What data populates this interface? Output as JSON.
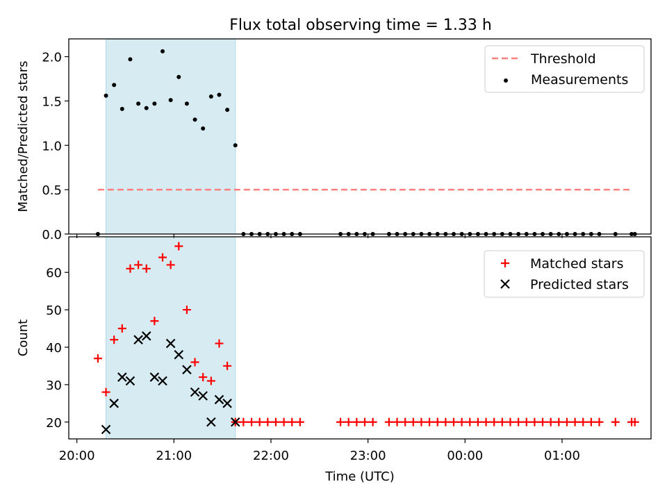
{
  "title": "Flux total observing time = 1.33 h",
  "colors": {
    "threshold": "#ff7f7f",
    "measurement": "#000000",
    "matched": "#ff0000",
    "predicted": "#000000",
    "highlight": "#add8e6"
  },
  "chart_data": [
    {
      "type": "scatter",
      "ylabel": "Matched/Predicted stars",
      "xlabel": "",
      "x_range": [
        "20:00",
        "01:55"
      ],
      "ylim": [
        0,
        2.2
      ],
      "yticks": [
        0.0,
        0.5,
        1.0,
        1.5,
        2.0
      ],
      "ytick_labels": [
        "0.0",
        "0.5",
        "1.0",
        "1.5",
        "2.0"
      ],
      "highlight_span": [
        "20:18",
        "21:38"
      ],
      "legend": {
        "position": "upper right",
        "entries": [
          {
            "label": "Threshold",
            "marker": "dashed-line"
          },
          {
            "label": "Measurements",
            "marker": "dot"
          }
        ]
      },
      "series": [
        {
          "name": "Threshold",
          "style": "dashed-line",
          "x": [
            "20:13",
            "01:43"
          ],
          "y": [
            0.5,
            0.5
          ]
        },
        {
          "name": "Measurements",
          "style": "dot",
          "x": [
            "20:13",
            "20:18",
            "20:23",
            "20:28",
            "20:33",
            "20:38",
            "20:43",
            "20:48",
            "20:53",
            "20:58",
            "21:03",
            "21:08",
            "21:13",
            "21:18",
            "21:23",
            "21:28",
            "21:33",
            "21:38",
            "21:43",
            "21:48",
            "21:53",
            "21:58",
            "22:03",
            "22:08",
            "22:13",
            "22:18",
            "22:43",
            "22:48",
            "22:53",
            "22:58",
            "23:03",
            "23:13",
            "23:18",
            "23:23",
            "23:28",
            "23:33",
            "23:38",
            "23:43",
            "23:48",
            "23:53",
            "23:58",
            "00:03",
            "00:08",
            "00:13",
            "00:18",
            "00:23",
            "00:28",
            "00:33",
            "00:38",
            "00:43",
            "00:48",
            "00:53",
            "00:58",
            "01:03",
            "01:08",
            "01:13",
            "01:18",
            "01:23",
            "01:33",
            "01:43",
            "01:45"
          ],
          "y": [
            0.0,
            1.56,
            1.68,
            1.41,
            1.97,
            1.47,
            1.42,
            1.47,
            2.06,
            1.51,
            1.77,
            1.47,
            1.29,
            1.19,
            1.55,
            1.57,
            1.4,
            1.0,
            0,
            0,
            0,
            0,
            0,
            0,
            0,
            0,
            0,
            0,
            0,
            0,
            0,
            0,
            0,
            0,
            0,
            0,
            0,
            0,
            0,
            0,
            0,
            0,
            0,
            0,
            0,
            0,
            0,
            0,
            0,
            0,
            0,
            0,
            0,
            0,
            0,
            0,
            0,
            0,
            0,
            0,
            0
          ]
        }
      ]
    },
    {
      "type": "scatter",
      "ylabel": "Count",
      "xlabel": "Time (UTC)",
      "x_range": [
        "20:00",
        "01:55"
      ],
      "xticks": [
        "20:00",
        "21:00",
        "22:00",
        "23:00",
        "00:00",
        "01:00"
      ],
      "ylim": [
        15.5,
        69.5
      ],
      "yticks": [
        20,
        30,
        40,
        50,
        60
      ],
      "ytick_labels": [
        "20",
        "30",
        "40",
        "50",
        "60"
      ],
      "highlight_span": [
        "20:18",
        "21:38"
      ],
      "legend": {
        "position": "upper right",
        "entries": [
          {
            "label": "Matched stars",
            "marker": "plus"
          },
          {
            "label": "Predicted stars",
            "marker": "cross"
          }
        ]
      },
      "series": [
        {
          "name": "Matched stars",
          "style": "plus",
          "x": [
            "20:13",
            "20:18",
            "20:23",
            "20:28",
            "20:33",
            "20:38",
            "20:43",
            "20:48",
            "20:53",
            "20:58",
            "21:03",
            "21:08",
            "21:13",
            "21:18",
            "21:23",
            "21:28",
            "21:33",
            "21:38",
            "21:43",
            "21:48",
            "21:53",
            "21:58",
            "22:03",
            "22:08",
            "22:13",
            "22:18",
            "22:43",
            "22:48",
            "22:53",
            "22:58",
            "23:03",
            "23:13",
            "23:18",
            "23:23",
            "23:28",
            "23:33",
            "23:38",
            "23:43",
            "23:48",
            "23:53",
            "23:58",
            "00:03",
            "00:08",
            "00:13",
            "00:18",
            "00:23",
            "00:28",
            "00:33",
            "00:38",
            "00:43",
            "00:48",
            "00:53",
            "00:58",
            "01:03",
            "01:08",
            "01:13",
            "01:18",
            "01:23",
            "01:33",
            "01:43",
            "01:45"
          ],
          "y": [
            37,
            28,
            42,
            45,
            61,
            62,
            61,
            47,
            64,
            62,
            67,
            50,
            36,
            32,
            31,
            41,
            35,
            20,
            20,
            20,
            20,
            20,
            20,
            20,
            20,
            20,
            20,
            20,
            20,
            20,
            20,
            20,
            20,
            20,
            20,
            20,
            20,
            20,
            20,
            20,
            20,
            20,
            20,
            20,
            20,
            20,
            20,
            20,
            20,
            20,
            20,
            20,
            20,
            20,
            20,
            20,
            20,
            20,
            20,
            20,
            20
          ]
        },
        {
          "name": "Predicted stars",
          "style": "cross",
          "x": [
            "20:18",
            "20:23",
            "20:28",
            "20:33",
            "20:38",
            "20:43",
            "20:48",
            "20:53",
            "20:58",
            "21:03",
            "21:08",
            "21:13",
            "21:18",
            "21:23",
            "21:28",
            "21:33",
            "21:38"
          ],
          "y": [
            18,
            25,
            32,
            31,
            42,
            43,
            32,
            31,
            41,
            38,
            34,
            28,
            27,
            20,
            26,
            25,
            20
          ]
        }
      ]
    }
  ]
}
